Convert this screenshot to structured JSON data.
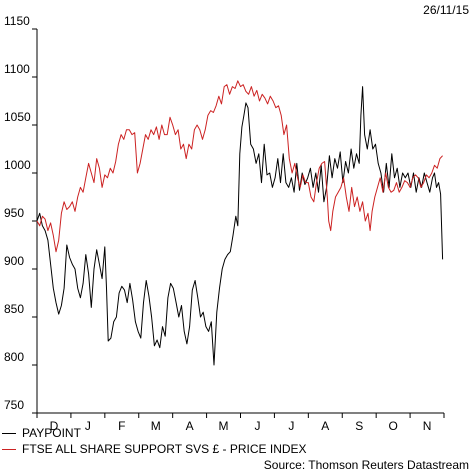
{
  "date_label": "26/11/15",
  "source": "Source: Thomson Reuters Datastream",
  "colors": {
    "paypoint": "#000000",
    "ftse": "#cc2222",
    "axis": "#000000"
  },
  "chart_data": {
    "type": "line",
    "ylim": [
      750,
      1150
    ],
    "yticks": [
      750,
      800,
      850,
      900,
      950,
      1000,
      1050,
      1100,
      1150
    ],
    "xlim": [
      0,
      12
    ],
    "months": [
      {
        "label": "D",
        "x": 0.5
      },
      {
        "label": "J",
        "x": 1.5
      },
      {
        "label": "F",
        "x": 2.5
      },
      {
        "label": "M",
        "x": 3.5
      },
      {
        "label": "A",
        "x": 4.5
      },
      {
        "label": "M",
        "x": 5.5
      },
      {
        "label": "J",
        "x": 6.5
      },
      {
        "label": "J",
        "x": 7.5
      },
      {
        "label": "A",
        "x": 8.5
      },
      {
        "label": "S",
        "x": 9.5
      },
      {
        "label": "O",
        "x": 10.5
      },
      {
        "label": "N",
        "x": 11.5
      }
    ],
    "series": [
      {
        "name": "PAYPOINT",
        "color": "#000000",
        "points": [
          [
            0.0,
            950
          ],
          [
            0.08,
            958
          ],
          [
            0.16,
            945
          ],
          [
            0.24,
            940
          ],
          [
            0.32,
            930
          ],
          [
            0.4,
            905
          ],
          [
            0.48,
            880
          ],
          [
            0.56,
            865
          ],
          [
            0.64,
            853
          ],
          [
            0.72,
            862
          ],
          [
            0.8,
            880
          ],
          [
            0.88,
            925
          ],
          [
            0.96,
            912
          ],
          [
            1.04,
            905
          ],
          [
            1.12,
            900
          ],
          [
            1.2,
            880
          ],
          [
            1.28,
            870
          ],
          [
            1.36,
            885
          ],
          [
            1.44,
            915
          ],
          [
            1.52,
            895
          ],
          [
            1.6,
            860
          ],
          [
            1.68,
            900
          ],
          [
            1.76,
            920
          ],
          [
            1.84,
            905
          ],
          [
            1.92,
            890
          ],
          [
            2.0,
            923
          ],
          [
            2.05,
            880
          ],
          [
            2.1,
            825
          ],
          [
            2.18,
            828
          ],
          [
            2.26,
            845
          ],
          [
            2.34,
            850
          ],
          [
            2.42,
            875
          ],
          [
            2.5,
            882
          ],
          [
            2.58,
            878
          ],
          [
            2.66,
            865
          ],
          [
            2.74,
            885
          ],
          [
            2.82,
            868
          ],
          [
            2.9,
            845
          ],
          [
            2.98,
            835
          ],
          [
            3.06,
            828
          ],
          [
            3.14,
            865
          ],
          [
            3.22,
            888
          ],
          [
            3.3,
            872
          ],
          [
            3.38,
            850
          ],
          [
            3.46,
            820
          ],
          [
            3.54,
            826
          ],
          [
            3.62,
            818
          ],
          [
            3.7,
            840
          ],
          [
            3.78,
            830
          ],
          [
            3.86,
            870
          ],
          [
            3.94,
            885
          ],
          [
            4.02,
            880
          ],
          [
            4.1,
            865
          ],
          [
            4.18,
            850
          ],
          [
            4.26,
            862
          ],
          [
            4.34,
            835
          ],
          [
            4.42,
            822
          ],
          [
            4.5,
            840
          ],
          [
            4.58,
            878
          ],
          [
            4.66,
            888
          ],
          [
            4.74,
            870
          ],
          [
            4.82,
            850
          ],
          [
            4.9,
            855
          ],
          [
            4.98,
            840
          ],
          [
            5.06,
            835
          ],
          [
            5.14,
            845
          ],
          [
            5.22,
            800
          ],
          [
            5.3,
            855
          ],
          [
            5.38,
            880
          ],
          [
            5.46,
            900
          ],
          [
            5.54,
            910
          ],
          [
            5.62,
            915
          ],
          [
            5.7,
            918
          ],
          [
            5.78,
            935
          ],
          [
            5.86,
            955
          ],
          [
            5.92,
            945
          ],
          [
            5.98,
            1020
          ],
          [
            6.04,
            1048
          ],
          [
            6.1,
            1060
          ],
          [
            6.16,
            1073
          ],
          [
            6.22,
            1068
          ],
          [
            6.3,
            1030
          ],
          [
            6.38,
            1025
          ],
          [
            6.46,
            1010
          ],
          [
            6.54,
            1020
          ],
          [
            6.62,
            990
          ],
          [
            6.7,
            1030
          ],
          [
            6.78,
            998
          ],
          [
            6.86,
            1000
          ],
          [
            6.94,
            985
          ],
          [
            7.02,
            995
          ],
          [
            7.1,
            1015
          ],
          [
            7.18,
            990
          ],
          [
            7.26,
            1020
          ],
          [
            7.34,
            990
          ],
          [
            7.42,
            985
          ],
          [
            7.5,
            995
          ],
          [
            7.58,
            980
          ],
          [
            7.66,
            1010
          ],
          [
            7.74,
            982
          ],
          [
            7.82,
            1000
          ],
          [
            7.9,
            988
          ],
          [
            7.98,
            995
          ],
          [
            8.06,
            1005
          ],
          [
            8.14,
            985
          ],
          [
            8.22,
            1000
          ],
          [
            8.3,
            980
          ],
          [
            8.38,
            1008
          ],
          [
            8.46,
            970
          ],
          [
            8.54,
            985
          ],
          [
            8.62,
            1018
          ],
          [
            8.7,
            995
          ],
          [
            8.78,
            1015
          ],
          [
            8.86,
            1005
          ],
          [
            8.94,
            1022
          ],
          [
            9.02,
            990
          ],
          [
            9.1,
            1012
          ],
          [
            9.18,
            1000
          ],
          [
            9.26,
            1025
          ],
          [
            9.34,
            1005
          ],
          [
            9.42,
            1020
          ],
          [
            9.5,
            1010
          ],
          [
            9.55,
            1060
          ],
          [
            9.6,
            1090
          ],
          [
            9.66,
            1040
          ],
          [
            9.74,
            1025
          ],
          [
            9.82,
            1045
          ],
          [
            9.9,
            1025
          ],
          [
            9.98,
            1030
          ],
          [
            10.06,
            1010
          ],
          [
            10.14,
            1000
          ],
          [
            10.22,
            980
          ],
          [
            10.3,
            1010
          ],
          [
            10.38,
            985
          ],
          [
            10.46,
            1020
          ],
          [
            10.54,
            995
          ],
          [
            10.62,
            1005
          ],
          [
            10.7,
            985
          ],
          [
            10.78,
            1000
          ],
          [
            10.86,
            995
          ],
          [
            10.94,
            1000
          ],
          [
            11.02,
            985
          ],
          [
            11.1,
            1000
          ],
          [
            11.18,
            980
          ],
          [
            11.26,
            995
          ],
          [
            11.34,
            985
          ],
          [
            11.42,
            1000
          ],
          [
            11.5,
            990
          ],
          [
            11.58,
            980
          ],
          [
            11.66,
            995
          ],
          [
            11.72,
            1000
          ],
          [
            11.78,
            985
          ],
          [
            11.84,
            990
          ],
          [
            11.9,
            978
          ],
          [
            11.96,
            910
          ]
        ]
      },
      {
        "name": "FTSE ALL SHARE SUPPORT SVS £ - PRICE INDEX",
        "color": "#cc2222",
        "points": [
          [
            0.0,
            950
          ],
          [
            0.08,
            945
          ],
          [
            0.16,
            955
          ],
          [
            0.24,
            952
          ],
          [
            0.32,
            940
          ],
          [
            0.4,
            948
          ],
          [
            0.48,
            935
          ],
          [
            0.56,
            918
          ],
          [
            0.64,
            930
          ],
          [
            0.72,
            958
          ],
          [
            0.8,
            970
          ],
          [
            0.88,
            962
          ],
          [
            0.96,
            965
          ],
          [
            1.04,
            970
          ],
          [
            1.12,
            960
          ],
          [
            1.2,
            975
          ],
          [
            1.28,
            985
          ],
          [
            1.36,
            980
          ],
          [
            1.44,
            995
          ],
          [
            1.52,
            1010
          ],
          [
            1.6,
            1000
          ],
          [
            1.68,
            990
          ],
          [
            1.76,
            1015
          ],
          [
            1.84,
            1005
          ],
          [
            1.92,
            985
          ],
          [
            2.0,
            998
          ],
          [
            2.08,
            995
          ],
          [
            2.16,
            1005
          ],
          [
            2.24,
            1000
          ],
          [
            2.32,
            1012
          ],
          [
            2.4,
            1030
          ],
          [
            2.48,
            1040
          ],
          [
            2.56,
            1035
          ],
          [
            2.64,
            1045
          ],
          [
            2.72,
            1045
          ],
          [
            2.8,
            1040
          ],
          [
            2.88,
            1042
          ],
          [
            2.96,
            1000
          ],
          [
            3.04,
            1010
          ],
          [
            3.12,
            1025
          ],
          [
            3.2,
            1040
          ],
          [
            3.28,
            1035
          ],
          [
            3.36,
            1045
          ],
          [
            3.44,
            1040
          ],
          [
            3.52,
            1048
          ],
          [
            3.6,
            1035
          ],
          [
            3.68,
            1050
          ],
          [
            3.76,
            1040
          ],
          [
            3.84,
            1040
          ],
          [
            3.92,
            1058
          ],
          [
            4.0,
            1050
          ],
          [
            4.08,
            1040
          ],
          [
            4.16,
            1045
          ],
          [
            4.24,
            1025
          ],
          [
            4.32,
            1030
          ],
          [
            4.4,
            1015
          ],
          [
            4.48,
            1030
          ],
          [
            4.56,
            1025
          ],
          [
            4.64,
            1045
          ],
          [
            4.72,
            1050
          ],
          [
            4.8,
            1045
          ],
          [
            4.88,
            1035
          ],
          [
            4.96,
            1045
          ],
          [
            5.04,
            1060
          ],
          [
            5.12,
            1065
          ],
          [
            5.2,
            1063
          ],
          [
            5.28,
            1070
          ],
          [
            5.36,
            1080
          ],
          [
            5.44,
            1072
          ],
          [
            5.52,
            1090
          ],
          [
            5.6,
            1092
          ],
          [
            5.68,
            1082
          ],
          [
            5.76,
            1090
          ],
          [
            5.84,
            1088
          ],
          [
            5.92,
            1096
          ],
          [
            6.0,
            1090
          ],
          [
            6.08,
            1092
          ],
          [
            6.16,
            1085
          ],
          [
            6.24,
            1082
          ],
          [
            6.32,
            1090
          ],
          [
            6.4,
            1080
          ],
          [
            6.48,
            1086
          ],
          [
            6.56,
            1075
          ],
          [
            6.64,
            1082
          ],
          [
            6.72,
            1078
          ],
          [
            6.8,
            1072
          ],
          [
            6.88,
            1080
          ],
          [
            6.96,
            1075
          ],
          [
            7.04,
            1068
          ],
          [
            7.12,
            1070
          ],
          [
            7.2,
            1060
          ],
          [
            7.28,
            1040
          ],
          [
            7.36,
            1050
          ],
          [
            7.44,
            1015
          ],
          [
            7.52,
            1000
          ],
          [
            7.6,
            1010
          ],
          [
            7.68,
            995
          ],
          [
            7.76,
            985
          ],
          [
            7.84,
            998
          ],
          [
            7.92,
            990
          ],
          [
            8.0,
            990
          ],
          [
            8.08,
            975
          ],
          [
            8.16,
            970
          ],
          [
            8.24,
            990
          ],
          [
            8.32,
            1005
          ],
          [
            8.4,
            1010
          ],
          [
            8.48,
            1012
          ],
          [
            8.56,
            975
          ],
          [
            8.6,
            950
          ],
          [
            8.66,
            940
          ],
          [
            8.72,
            960
          ],
          [
            8.8,
            975
          ],
          [
            8.88,
            980
          ],
          [
            8.96,
            985
          ],
          [
            9.04,
            995
          ],
          [
            9.12,
            975
          ],
          [
            9.2,
            960
          ],
          [
            9.28,
            985
          ],
          [
            9.36,
            965
          ],
          [
            9.44,
            975
          ],
          [
            9.52,
            960
          ],
          [
            9.6,
            970
          ],
          [
            9.68,
            950
          ],
          [
            9.76,
            958
          ],
          [
            9.82,
            940
          ],
          [
            9.88,
            960
          ],
          [
            9.96,
            975
          ],
          [
            10.04,
            985
          ],
          [
            10.12,
            995
          ],
          [
            10.2,
            980
          ],
          [
            10.28,
            1000
          ],
          [
            10.36,
            985
          ],
          [
            10.44,
            980
          ],
          [
            10.52,
            982
          ],
          [
            10.6,
            990
          ],
          [
            10.68,
            980
          ],
          [
            10.76,
            985
          ],
          [
            10.84,
            992
          ],
          [
            10.92,
            990
          ],
          [
            11.0,
            985
          ],
          [
            11.08,
            995
          ],
          [
            11.16,
            998
          ],
          [
            11.24,
            995
          ],
          [
            11.32,
            985
          ],
          [
            11.4,
            990
          ],
          [
            11.48,
            998
          ],
          [
            11.56,
            995
          ],
          [
            11.64,
            1000
          ],
          [
            11.72,
            1008
          ],
          [
            11.8,
            1005
          ],
          [
            11.88,
            1015
          ],
          [
            11.96,
            1018
          ]
        ]
      }
    ]
  }
}
